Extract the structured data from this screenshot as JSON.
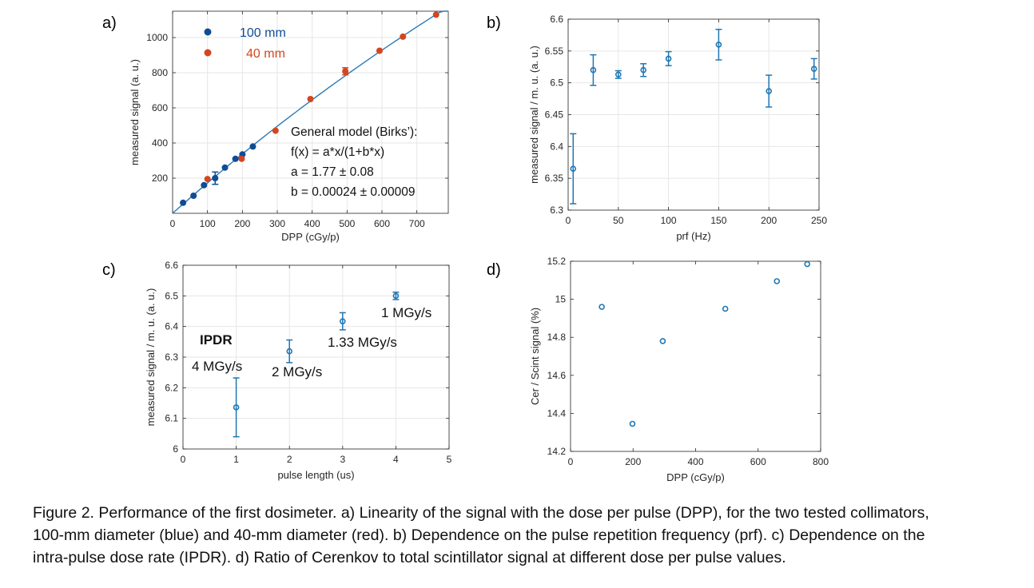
{
  "panels": [
    {
      "letter": "a)",
      "chart_data": {
        "type": "scatter",
        "xlabel": "DPP (cGy/p)",
        "ylabel": "measured signal (a. u.)",
        "xlim": [
          0,
          790
        ],
        "ylim": [
          0,
          1150
        ],
        "xticks": [
          0,
          100,
          200,
          300,
          400,
          500,
          600,
          700
        ],
        "yticks": [
          200,
          400,
          600,
          800,
          1000
        ],
        "grid": true,
        "legend_position": "top-left",
        "series": [
          {
            "name": "100 mm",
            "color": "#0e4d94",
            "x": [
              30,
              60,
              90,
              122,
              150,
              180,
              200,
              230
            ],
            "y": [
              60,
              100,
              160,
              200,
              260,
              310,
              335,
              380
            ],
            "yerr": [
              0,
              0,
              0,
              35,
              0,
              0,
              0,
              0
            ]
          },
          {
            "name": "40 mm",
            "color": "#d4461f",
            "x": [
              100,
              198,
              295,
              395,
              495,
              593,
              660,
              755
            ],
            "y": [
              195,
              310,
              470,
              650,
              808,
              925,
              1005,
              1130
            ],
            "yerr": [
              0,
              0,
              0,
              0,
              20,
              0,
              0,
              0
            ]
          }
        ],
        "fit": {
          "a": 1.77,
          "b": 0.00024,
          "x0": 0,
          "x1": 790,
          "color": "#2a7ab8"
        },
        "annotation_lines": [
          "General model (Birks’):",
          "f(x) = a*x/(1+b*x)",
          "a =  1.77 ± 0.08",
          "b =  0.00024 ±  0.00009"
        ]
      }
    },
    {
      "letter": "b)",
      "chart_data": {
        "type": "scatter",
        "xlabel": "prf (Hz)",
        "ylabel": "measured signal / m. u. (a. u.)",
        "xlim": [
          0,
          250
        ],
        "ylim": [
          6.3,
          6.6
        ],
        "xticks": [
          0,
          50,
          100,
          150,
          200,
          250
        ],
        "yticks": [
          6.3,
          6.35,
          6.4,
          6.45,
          6.5,
          6.55,
          6.6
        ],
        "grid": true,
        "series": [
          {
            "color": "#1f77b4",
            "x": [
              5,
              25,
              50,
              75,
              100,
              150,
              200,
              245
            ],
            "y": [
              6.365,
              6.52,
              6.513,
              6.52,
              6.538,
              6.56,
              6.487,
              6.522
            ],
            "yerr": [
              0.055,
              0.024,
              0.006,
              0.01,
              0.011,
              0.024,
              0.025,
              0.016
            ]
          }
        ]
      }
    },
    {
      "letter": "c)",
      "chart_data": {
        "type": "scatter",
        "xlabel": "pulse length (us)",
        "ylabel": "measured signal / m. u. (a. u.)",
        "xlim": [
          0,
          5
        ],
        "ylim": [
          6.0,
          6.6
        ],
        "xticks": [
          0,
          1,
          2,
          3,
          4,
          5
        ],
        "yticks": [
          6,
          6.1,
          6.2,
          6.3,
          6.4,
          6.5,
          6.6
        ],
        "grid": true,
        "series": [
          {
            "color": "#1f77b4",
            "x": [
              1,
              2,
              3,
              4
            ],
            "y": [
              6.136,
              6.319,
              6.417,
              6.5
            ],
            "yerr": [
              0.096,
              0.037,
              0.028,
              0.012
            ]
          }
        ],
        "title_label": "IPDR",
        "point_labels": [
          "4 MGy/s",
          "2 MGy/s",
          "1.33 MGy/s",
          "1 MGy/s"
        ]
      }
    },
    {
      "letter": "d)",
      "chart_data": {
        "type": "scatter",
        "xlabel": "DPP (cGy/p)",
        "ylabel": "Cer / Scint signal (%)",
        "xlim": [
          0,
          800
        ],
        "ylim": [
          14.2,
          15.2
        ],
        "xticks": [
          0,
          200,
          400,
          600,
          800
        ],
        "yticks": [
          14.2,
          14.4,
          14.6,
          14.8,
          15,
          15.2
        ],
        "grid": false,
        "series": [
          {
            "color": "#1f77b4",
            "x": [
              100,
              198,
              295,
              495,
              660,
              757
            ],
            "y": [
              14.96,
              14.345,
              14.78,
              14.95,
              15.095,
              15.185
            ]
          }
        ]
      }
    }
  ],
  "caption": {
    "lines": [
      "Figure 2. Performance of the first dosimeter. a) Linearity of the signal with the dose per pulse (DPP), for the two tested collimators,",
      "100-mm diameter (blue) and 40-mm diameter (red). b) Dependence on the pulse repetition frequency (prf). c) Dependence on the",
      "intra-pulse dose rate (IPDR). d) Ratio of Cerenkov to total scintillator signal at different dose per pulse values."
    ]
  }
}
